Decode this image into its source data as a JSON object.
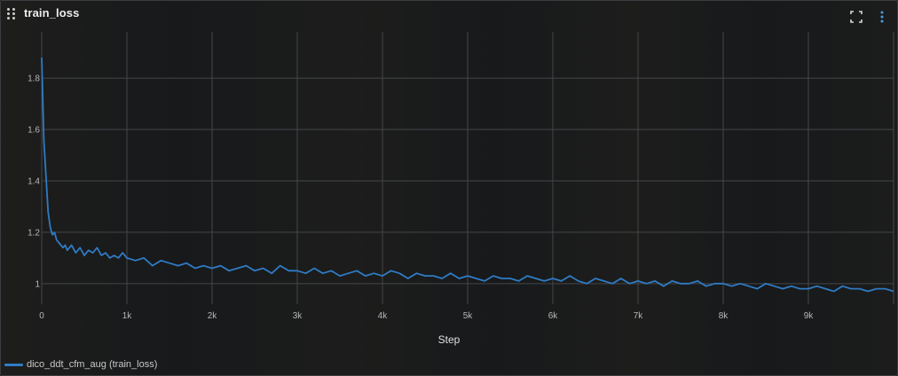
{
  "panel": {
    "title": "train_loss",
    "icons": {
      "drag": "drag-handle-icon",
      "fullscreen": "fullscreen-icon",
      "more": "more-vertical-icon"
    }
  },
  "colors": {
    "line": "#2f7bc4",
    "grid": "#44464a",
    "background": "#17191b"
  },
  "chart_data": {
    "type": "line",
    "title": "train_loss",
    "xlabel": "Step",
    "ylabel": "",
    "xlim": [
      0,
      10000
    ],
    "ylim": [
      0.92,
      1.98
    ],
    "xticks": [
      {
        "value": 0,
        "label": "0"
      },
      {
        "value": 1000,
        "label": "1k"
      },
      {
        "value": 2000,
        "label": "2k"
      },
      {
        "value": 3000,
        "label": "3k"
      },
      {
        "value": 4000,
        "label": "4k"
      },
      {
        "value": 5000,
        "label": "5k"
      },
      {
        "value": 6000,
        "label": "6k"
      },
      {
        "value": 7000,
        "label": "7k"
      },
      {
        "value": 8000,
        "label": "8k"
      },
      {
        "value": 9000,
        "label": "9k"
      }
    ],
    "yticks": [
      {
        "value": 1.0,
        "label": "1"
      },
      {
        "value": 1.2,
        "label": "1.2"
      },
      {
        "value": 1.4,
        "label": "1.4"
      },
      {
        "value": 1.6,
        "label": "1.6"
      },
      {
        "value": 1.8,
        "label": "1.8"
      }
    ],
    "grid": true,
    "legend_position": "bottom-left",
    "series": [
      {
        "name": "dico_ddt_cfm_aug (train_loss)",
        "x": [
          0,
          25,
          50,
          75,
          100,
          125,
          150,
          175,
          200,
          225,
          250,
          275,
          300,
          350,
          400,
          450,
          500,
          550,
          600,
          650,
          700,
          750,
          800,
          850,
          900,
          950,
          1000,
          1100,
          1200,
          1300,
          1400,
          1500,
          1600,
          1700,
          1800,
          1900,
          2000,
          2100,
          2200,
          2300,
          2400,
          2500,
          2600,
          2700,
          2800,
          2900,
          3000,
          3100,
          3200,
          3300,
          3400,
          3500,
          3600,
          3700,
          3800,
          3900,
          4000,
          4100,
          4200,
          4300,
          4400,
          4500,
          4600,
          4700,
          4800,
          4900,
          5000,
          5100,
          5200,
          5300,
          5400,
          5500,
          5600,
          5700,
          5800,
          5900,
          6000,
          6100,
          6200,
          6300,
          6400,
          6500,
          6600,
          6700,
          6800,
          6900,
          7000,
          7100,
          7200,
          7300,
          7400,
          7500,
          7600,
          7700,
          7800,
          7900,
          8000,
          8100,
          8200,
          8300,
          8400,
          8500,
          8600,
          8700,
          8800,
          8900,
          9000,
          9100,
          9200,
          9300,
          9400,
          9500,
          9600,
          9700,
          9800,
          9900,
          10000
        ],
        "y": [
          1.88,
          1.56,
          1.42,
          1.28,
          1.22,
          1.19,
          1.2,
          1.17,
          1.16,
          1.15,
          1.14,
          1.15,
          1.13,
          1.15,
          1.12,
          1.14,
          1.11,
          1.13,
          1.12,
          1.14,
          1.11,
          1.12,
          1.1,
          1.11,
          1.1,
          1.12,
          1.1,
          1.09,
          1.1,
          1.07,
          1.09,
          1.08,
          1.07,
          1.08,
          1.06,
          1.07,
          1.06,
          1.07,
          1.05,
          1.06,
          1.07,
          1.05,
          1.06,
          1.04,
          1.07,
          1.05,
          1.05,
          1.04,
          1.06,
          1.04,
          1.05,
          1.03,
          1.04,
          1.05,
          1.03,
          1.04,
          1.03,
          1.05,
          1.04,
          1.02,
          1.04,
          1.03,
          1.03,
          1.02,
          1.04,
          1.02,
          1.03,
          1.02,
          1.01,
          1.03,
          1.02,
          1.02,
          1.01,
          1.03,
          1.02,
          1.01,
          1.02,
          1.01,
          1.03,
          1.01,
          1.0,
          1.02,
          1.01,
          1.0,
          1.02,
          1.0,
          1.01,
          1.0,
          1.01,
          0.99,
          1.01,
          1.0,
          1.0,
          1.01,
          0.99,
          1.0,
          1.0,
          0.99,
          1.0,
          0.99,
          0.98,
          1.0,
          0.99,
          0.98,
          0.99,
          0.98,
          0.98,
          0.99,
          0.98,
          0.97,
          0.99,
          0.98,
          0.98,
          0.97,
          0.98,
          0.98,
          0.97
        ]
      }
    ]
  },
  "legend": {
    "label": "dico_ddt_cfm_aug (train_loss)"
  }
}
